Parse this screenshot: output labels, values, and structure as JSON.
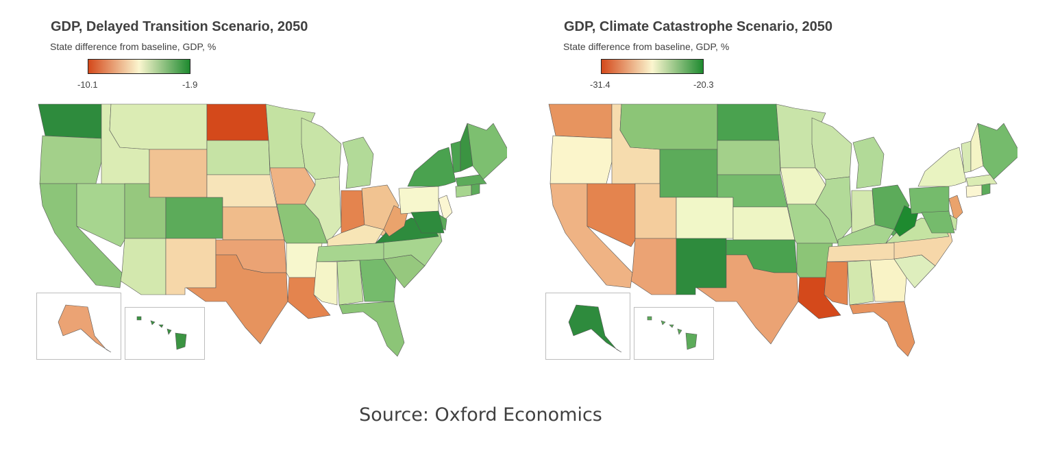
{
  "maps": [
    {
      "title": "GDP, Delayed Transition Scenario, 2050",
      "subtitle": "State difference from baseline, GDP, %",
      "legend": {
        "min_label": "-10.1",
        "max_label": "-1.9",
        "low_color": "#d4491b",
        "mid_color": "#fbf6cf",
        "high_color": "#1e8a2f"
      },
      "states": {
        "WA": "#2e8b3d",
        "OR": "#a3d08a",
        "CA": "#8cc579",
        "NV": "#a7d58f",
        "ID": "#dbecb4",
        "MT": "#dbecb4",
        "WY": "#f1c393",
        "UT": "#96c87e",
        "AZ": "#d3e8ae",
        "CO": "#5cab5a",
        "NM": "#f6d7a9",
        "ND": "#d4491b",
        "SD": "#c6e3a5",
        "NE": "#f7e4b9",
        "KS": "#f0bc8b",
        "OK": "#eba374",
        "TX": "#e6935e",
        "MN": "#c4e2a2",
        "IA": "#efb384",
        "MO": "#8cc577",
        "AR": "#f7f7cd",
        "LA": "#e4844e",
        "WI": "#c8e4a7",
        "IL": "#d8eab4",
        "MI": "#b2da98",
        "IN": "#e4844e",
        "OH": "#f1c391",
        "KY": "#f7e5b6",
        "TN": "#a7d58f",
        "MS": "#f5f5c8",
        "AL": "#c5e3a2",
        "GA": "#75bb6c",
        "FL": "#8cc577",
        "SC": "#96c87e",
        "NC": "#a7d58f",
        "VA": "#2e8b3d",
        "WV": "#eaa36c",
        "PA": "#f7f7cd",
        "NY": "#4aa24f",
        "VT": "#4aa24f",
        "NH": "#3b9442",
        "ME": "#7dbf70",
        "MA": "#5cab5a",
        "CT": "#a7d58f",
        "RI": "#5cab5a",
        "NJ": "#fbf6d2",
        "DE": "#5cab5a",
        "MD": "#2e8b3d",
        "AK": "#eba374",
        "HI": "#3b9442"
      }
    },
    {
      "title": "GDP, Climate Catastrophe Scenario, 2050",
      "subtitle": "State difference from baseline, GDP, %",
      "legend": {
        "min_label": "-31.4",
        "max_label": "-20.3",
        "low_color": "#d4491b",
        "mid_color": "#fbf6cf",
        "high_color": "#1e8a2f"
      },
      "states": {
        "WA": "#e7945f",
        "OR": "#fbf5cb",
        "CA": "#efb384",
        "NV": "#e4844e",
        "ID": "#f6dcae",
        "MT": "#8cc577",
        "WY": "#5cab5a",
        "UT": "#f4cd9d",
        "AZ": "#eba374",
        "CO": "#f1f7c8",
        "NM": "#2e8b3d",
        "ND": "#4aa24f",
        "SD": "#a3d08a",
        "NE": "#75bb6c",
        "KS": "#eef5c4",
        "OK": "#4aa24f",
        "TX": "#eba374",
        "MN": "#c9e4a9",
        "IA": "#eef5c4",
        "MO": "#a7d58f",
        "AR": "#8cc577",
        "LA": "#d4491b",
        "WI": "#c9e4a9",
        "IL": "#b2da98",
        "MI": "#b2da98",
        "IN": "#d3e8ae",
        "OH": "#5cab5a",
        "KY": "#a7d58f",
        "TN": "#f6dcae",
        "MS": "#e4844e",
        "AL": "#d3e8ae",
        "GA": "#f9f3c6",
        "FL": "#e7945f",
        "SC": "#deeebd",
        "NC": "#f6d7a9",
        "VA": "#c5e3a2",
        "WV": "#1e8a2f",
        "PA": "#75bb6c",
        "NY": "#e9f3c1",
        "VT": "#d8eab4",
        "NH": "#f4f4c5",
        "ME": "#75bb6c",
        "MA": "#dbecb4",
        "CT": "#fbf6d2",
        "RI": "#5cab5a",
        "NJ": "#eaa36c",
        "DE": "#c5e3a2",
        "MD": "#75bb6c",
        "AK": "#2e8b3d",
        "HI": "#5cab5a"
      }
    }
  ],
  "source": "Source: Oxford Economics"
}
